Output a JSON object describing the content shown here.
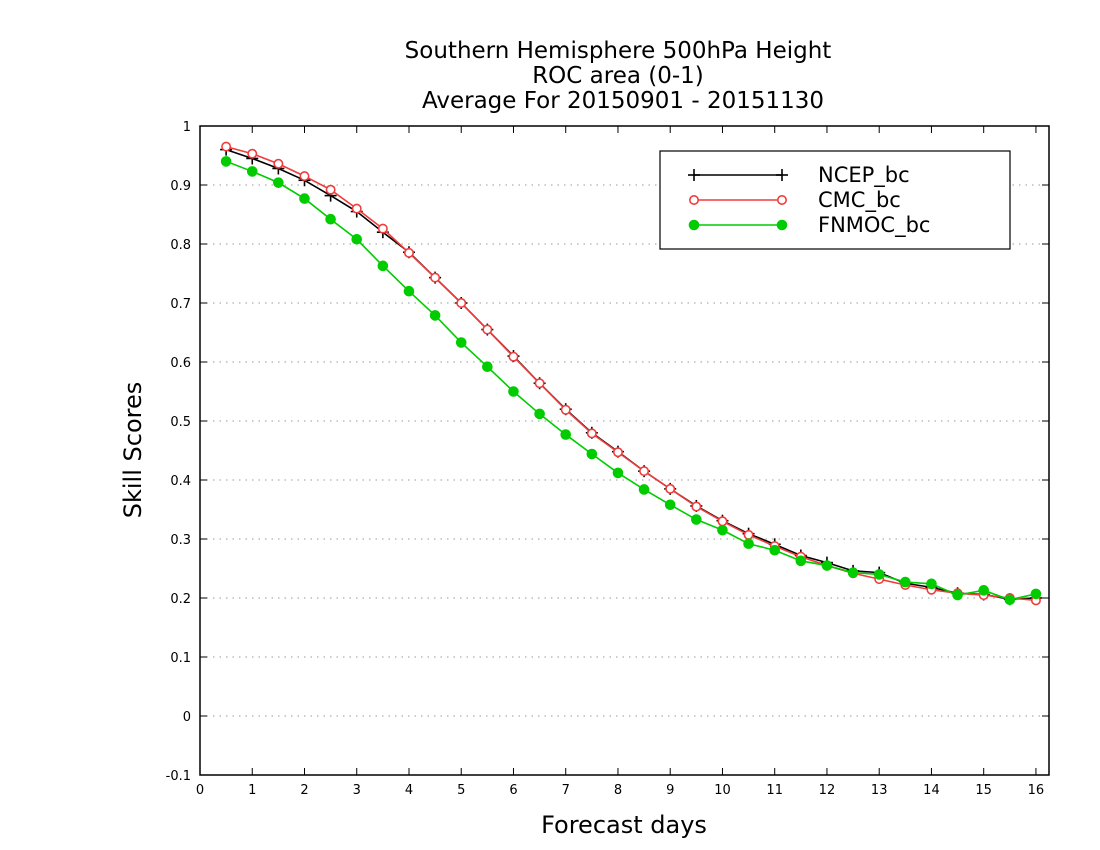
{
  "chart_data": {
    "type": "line",
    "title": [
      "Southern Hemisphere 500hPa Height",
      "ROC area (0-1)",
      "Average For 20150901 - 20151130"
    ],
    "xlabel": "Forecast days",
    "ylabel": "Skill Scores",
    "xlim": [
      0,
      16.25
    ],
    "ylim": [
      -0.1,
      1
    ],
    "xticks": [
      "0",
      "1",
      "2",
      "3",
      "4",
      "5",
      "6",
      "7",
      "8",
      "9",
      "10",
      "11",
      "12",
      "13",
      "14",
      "15",
      "16"
    ],
    "yticks": [
      "-0.1",
      "0",
      "0.1",
      "0.2",
      "0.3",
      "0.4",
      "0.5",
      "0.6",
      "0.7",
      "0.8",
      "0.9",
      "1"
    ],
    "grid": true,
    "legend_position": "top-right",
    "x": [
      0.5,
      1,
      1.5,
      2,
      2.5,
      3,
      3.5,
      4,
      4.5,
      5,
      5.5,
      6,
      6.5,
      7,
      7.5,
      8,
      8.5,
      9,
      9.5,
      10,
      10.5,
      11,
      11.5,
      12,
      12.5,
      13,
      13.5,
      14,
      14.5,
      15,
      15.5,
      16
    ],
    "series": [
      {
        "name": "NCEP_bc",
        "color": "#000000",
        "marker": "plus",
        "values": [
          0.96,
          0.945,
          0.928,
          0.908,
          0.882,
          0.855,
          0.82,
          0.786,
          0.743,
          0.7,
          0.655,
          0.61,
          0.564,
          0.52,
          0.48,
          0.448,
          0.415,
          0.385,
          0.356,
          0.331,
          0.309,
          0.291,
          0.272,
          0.26,
          0.246,
          0.243,
          0.225,
          0.218,
          0.208,
          0.206,
          0.198,
          0.2
        ]
      },
      {
        "name": "CMC_bc",
        "color": "#f03c3c",
        "marker": "open-circle",
        "values": [
          0.965,
          0.953,
          0.936,
          0.915,
          0.892,
          0.86,
          0.826,
          0.785,
          0.743,
          0.7,
          0.655,
          0.609,
          0.564,
          0.519,
          0.479,
          0.447,
          0.415,
          0.385,
          0.355,
          0.33,
          0.307,
          0.288,
          0.27,
          0.255,
          0.242,
          0.232,
          0.222,
          0.214,
          0.208,
          0.205,
          0.2,
          0.196
        ]
      },
      {
        "name": "FNMOC_bc",
        "color": "#00cc00",
        "marker": "filled-circle",
        "values": [
          0.94,
          0.923,
          0.904,
          0.877,
          0.842,
          0.808,
          0.763,
          0.72,
          0.679,
          0.633,
          0.592,
          0.55,
          0.512,
          0.477,
          0.444,
          0.412,
          0.384,
          0.358,
          0.333,
          0.315,
          0.292,
          0.281,
          0.263,
          0.255,
          0.243,
          0.24,
          0.227,
          0.224,
          0.205,
          0.213,
          0.197,
          0.207
        ]
      }
    ]
  }
}
